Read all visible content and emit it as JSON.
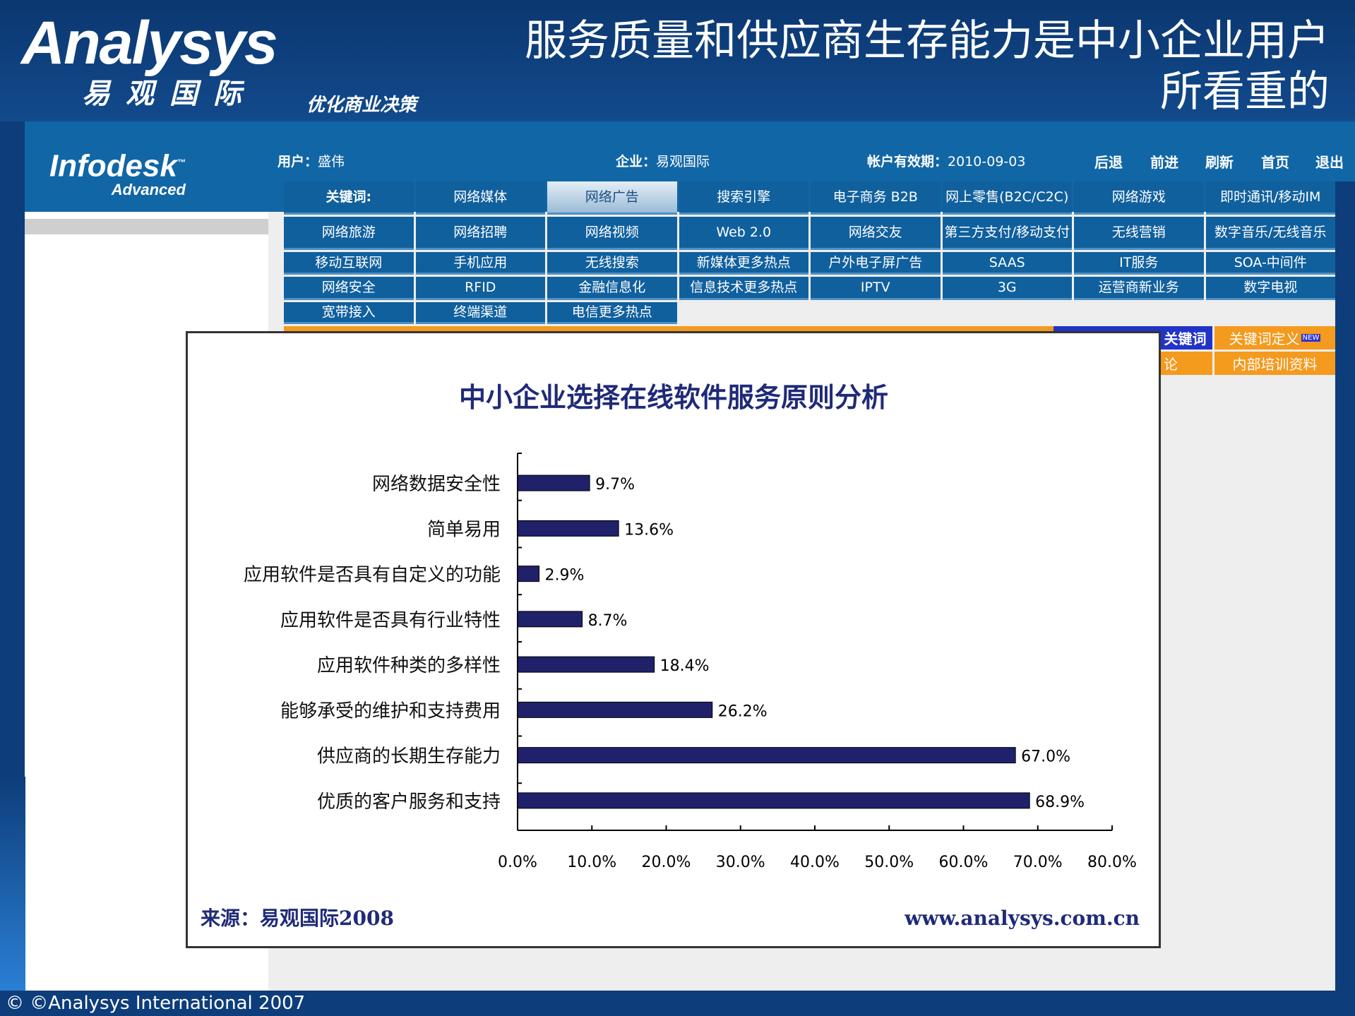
{
  "slide": {
    "title_line1": "服务质量和供应商生存能力是中小企业用户",
    "title_line2": "所看重的",
    "logo_text": "Analysys",
    "logo_cn": "易观国际",
    "logo_tagline": "优化商业决策",
    "footer": "© ©Analysys International 2007"
  },
  "portal": {
    "logo": "Infodesk",
    "logo_tm": "™",
    "logo_sub": "Advanced",
    "user_label": "用户：",
    "user": "盛伟",
    "company_label": "企业：",
    "company": "易观国际",
    "expiry_label": "帐户有效期：",
    "expiry": "2010-09-03",
    "nav": [
      "后退",
      "前进",
      "刷新",
      "首页",
      "退出"
    ],
    "keywords": [
      [
        "关键词:",
        "网络媒体",
        "网络广告",
        "搜索引擎",
        "电子商务 B2B",
        "网上零售(B2C/C2C)",
        "网络游戏",
        "即时通讯/移动IM"
      ],
      [
        "网络旅游",
        "网络招聘",
        "网络视频",
        "Web 2.0",
        "网络交友",
        "第三方支付/移动支付",
        "无线营销",
        "数字音乐/无线音乐"
      ],
      [
        "移动互联网",
        "手机应用",
        "无线搜索",
        "新媒体更多热点",
        "户外电子屏广告",
        "SAAS",
        "IT服务",
        "SOA-中间件"
      ],
      [
        "网络安全",
        "RFID",
        "金融信息化",
        "信息技术更多热点",
        "IPTV",
        "3G",
        "运营商新业务",
        "数字电视"
      ],
      [
        "宽带接入",
        "终端渠道",
        "电信更多热点"
      ]
    ],
    "selected_keyword": "网络广告",
    "side_buttons": {
      "kw": "关键词",
      "kw_def": "关键词定义",
      "new_badge": "NEW",
      "discuss": "论",
      "training": "内部培训资料"
    }
  },
  "chart_data": {
    "type": "bar",
    "orientation": "horizontal",
    "title": "中小企业选择在线软件服务原则分析",
    "categories": [
      "网络数据安全性",
      "简单易用",
      "应用软件是否具有自定义的功能",
      "应用软件是否具有行业特性",
      "应用软件种类的多样性",
      "能够承受的维护和支持费用",
      "供应商的长期生存能力",
      "优质的客户服务和支持"
    ],
    "values": [
      9.7,
      13.6,
      2.9,
      8.7,
      18.4,
      26.2,
      67.0,
      68.9
    ],
    "value_labels": [
      "9.7%",
      "13.6%",
      "2.9%",
      "8.7%",
      "18.4%",
      "26.2%",
      "67.0%",
      "68.9%"
    ],
    "xlim": [
      0,
      80
    ],
    "xticks": [
      "0.0%",
      "10.0%",
      "20.0%",
      "30.0%",
      "40.0%",
      "50.0%",
      "60.0%",
      "70.0%",
      "80.0%"
    ],
    "bar_color": "#20216a",
    "grid": false,
    "source": "来源：易观国际2008",
    "url": "www.analysys.com.cn"
  }
}
